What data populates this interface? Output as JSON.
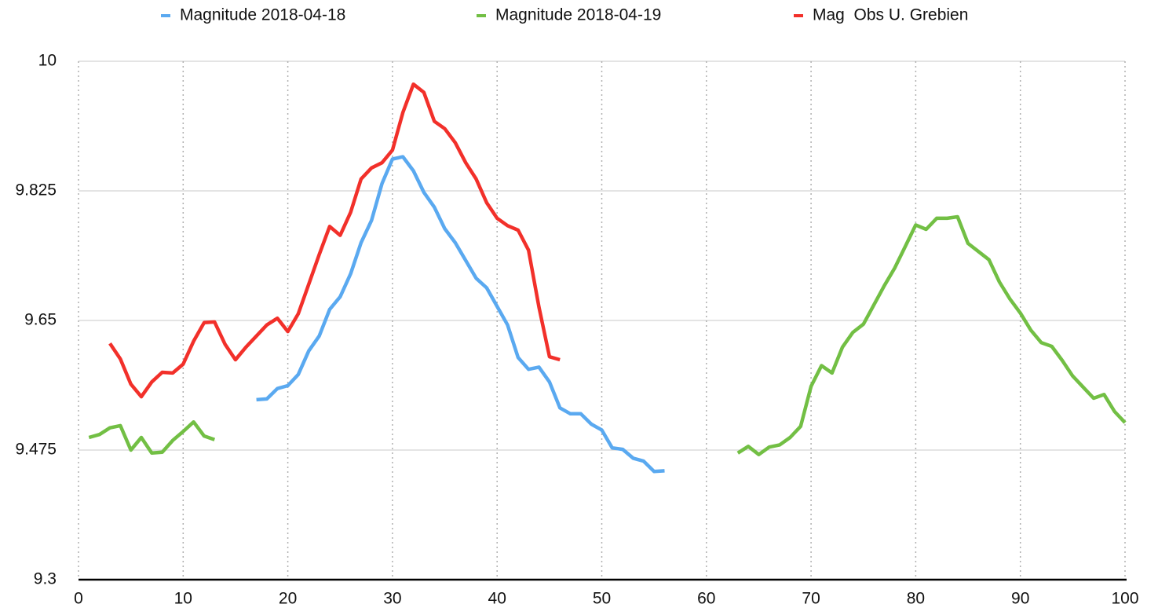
{
  "chart_data": {
    "type": "line",
    "x": [
      1,
      2,
      3,
      4,
      5,
      6,
      7,
      8,
      9,
      10,
      11,
      12,
      13,
      14,
      15,
      16,
      17,
      18,
      19,
      20,
      21,
      22,
      23,
      24,
      25,
      26,
      27,
      28,
      29,
      30,
      31,
      32,
      33,
      34,
      35,
      36,
      37,
      38,
      39,
      40,
      41,
      42,
      43,
      44,
      45,
      46,
      47,
      48,
      49,
      50,
      51,
      52,
      53,
      54,
      55,
      56,
      57,
      58,
      59,
      60,
      61,
      62,
      63,
      64,
      65,
      66,
      67,
      68,
      69,
      70,
      71,
      72,
      73,
      74,
      75,
      76,
      77,
      78,
      79,
      80,
      81,
      82,
      83,
      84,
      85,
      86,
      87,
      88,
      89,
      90,
      91,
      92,
      93,
      94,
      95,
      96,
      97,
      98,
      99,
      100
    ],
    "series": [
      {
        "name": "Magnitude 2018-04-18",
        "color": "#5aa9f0",
        "values": [
          null,
          null,
          null,
          null,
          null,
          null,
          null,
          null,
          null,
          null,
          null,
          null,
          null,
          null,
          null,
          null,
          9.543,
          9.544,
          9.558,
          9.562,
          9.577,
          9.609,
          9.629,
          9.665,
          9.682,
          9.713,
          9.755,
          9.785,
          9.835,
          9.868,
          9.871,
          9.852,
          9.823,
          9.803,
          9.774,
          9.755,
          9.731,
          9.707,
          9.694,
          9.669,
          9.644,
          9.6,
          9.584,
          9.587,
          9.567,
          9.532,
          9.524,
          9.524,
          9.51,
          9.502,
          9.478,
          9.476,
          9.464,
          9.46,
          9.446,
          9.447,
          null,
          null,
          null,
          null,
          null,
          null,
          null,
          null,
          null,
          null,
          null,
          null,
          null,
          null,
          null,
          null,
          null,
          null,
          null,
          null,
          null,
          null,
          null,
          null,
          null,
          null,
          null,
          null,
          null,
          null,
          null,
          null,
          null,
          null,
          null,
          null,
          null,
          null,
          null,
          null,
          null,
          null,
          null,
          null
        ]
      },
      {
        "name": "Magnitude 2018-04-19",
        "color": "#72bf44",
        "values": [
          9.492,
          9.496,
          9.505,
          9.508,
          9.475,
          9.492,
          9.471,
          9.472,
          9.488,
          9.5,
          9.513,
          9.494,
          9.489,
          null,
          null,
          null,
          null,
          null,
          null,
          null,
          null,
          null,
          null,
          null,
          null,
          null,
          null,
          null,
          null,
          null,
          null,
          null,
          null,
          null,
          null,
          null,
          null,
          null,
          null,
          null,
          null,
          null,
          null,
          null,
          null,
          null,
          null,
          null,
          null,
          null,
          null,
          null,
          null,
          null,
          null,
          null,
          null,
          null,
          null,
          null,
          null,
          null,
          9.471,
          9.48,
          9.469,
          9.479,
          9.482,
          9.492,
          9.507,
          9.561,
          9.589,
          9.579,
          9.614,
          9.634,
          9.645,
          9.671,
          9.697,
          9.721,
          9.75,
          9.779,
          9.773,
          9.788,
          9.788,
          9.79,
          9.754,
          9.743,
          9.732,
          9.702,
          9.679,
          9.66,
          9.637,
          9.62,
          9.615,
          9.596,
          9.575,
          9.56,
          9.545,
          9.55,
          9.527,
          9.512
        ]
      },
      {
        "name": "Mag  Obs U. Grebien",
        "color": "#f2302a",
        "values": [
          null,
          null,
          9.619,
          9.598,
          9.564,
          9.547,
          9.567,
          9.58,
          9.579,
          9.591,
          9.622,
          9.647,
          9.648,
          9.618,
          9.597,
          9.614,
          9.629,
          9.644,
          9.653,
          9.635,
          9.659,
          9.699,
          9.739,
          9.777,
          9.765,
          9.796,
          9.841,
          9.856,
          9.863,
          9.88,
          9.931,
          9.969,
          9.958,
          9.919,
          9.909,
          9.89,
          9.863,
          9.841,
          9.809,
          9.788,
          9.778,
          9.772,
          9.745,
          9.668,
          9.601,
          9.597,
          null,
          null,
          null,
          null,
          null,
          null,
          null,
          null,
          null,
          null,
          null,
          null,
          null,
          null,
          null,
          null,
          null,
          null,
          null,
          null,
          null,
          null,
          null,
          null,
          null,
          null,
          null,
          null,
          null,
          null,
          null,
          null,
          null,
          null,
          null,
          null,
          null,
          null,
          null,
          null,
          null,
          null,
          null,
          null,
          null,
          null,
          null,
          null,
          null,
          null,
          null,
          null,
          null,
          null
        ]
      }
    ],
    "xlim": [
      0,
      100
    ],
    "xticks": [
      0,
      10,
      20,
      30,
      40,
      50,
      60,
      70,
      80,
      90,
      100
    ],
    "ylim": [
      9.3,
      10
    ],
    "yticks": [
      9.3,
      9.475,
      9.65,
      9.825,
      10
    ],
    "grid": true,
    "legend": "top"
  }
}
